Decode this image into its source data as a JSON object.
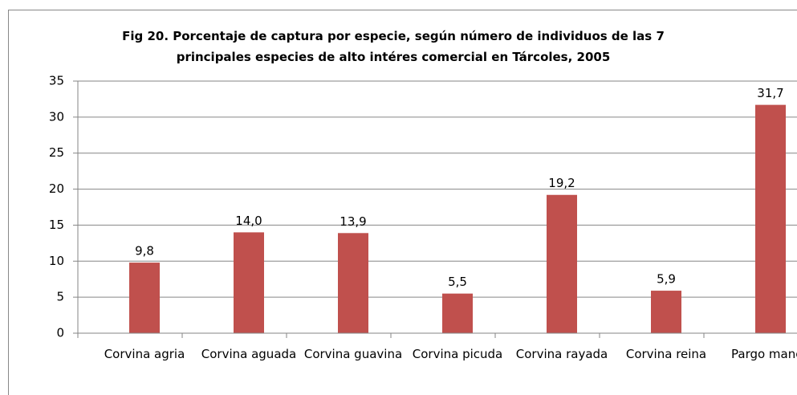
{
  "chart_data": {
    "type": "bar",
    "title": "Fig 20. Porcentaje de captura por especie, según número de individuos de las 7 principales especies de alto intéres comercial en Tárcoles, 2005",
    "categories": [
      "Corvina agria",
      "Corvina aguada",
      "Corvina guavina",
      "Corvina picuda",
      "Corvina rayada",
      "Corvina reina",
      "Pargo manch"
    ],
    "values": [
      9.8,
      14.0,
      13.9,
      5.5,
      19.2,
      5.9,
      31.7
    ],
    "value_labels": [
      "9,8",
      "14,0",
      "13,9",
      "5,5",
      "19,2",
      "5,9",
      "31,7"
    ],
    "color": "#c0504d",
    "ylim": [
      0,
      35
    ],
    "yticks": [
      0,
      5,
      10,
      15,
      20,
      25,
      30,
      35
    ],
    "grid": true
  }
}
